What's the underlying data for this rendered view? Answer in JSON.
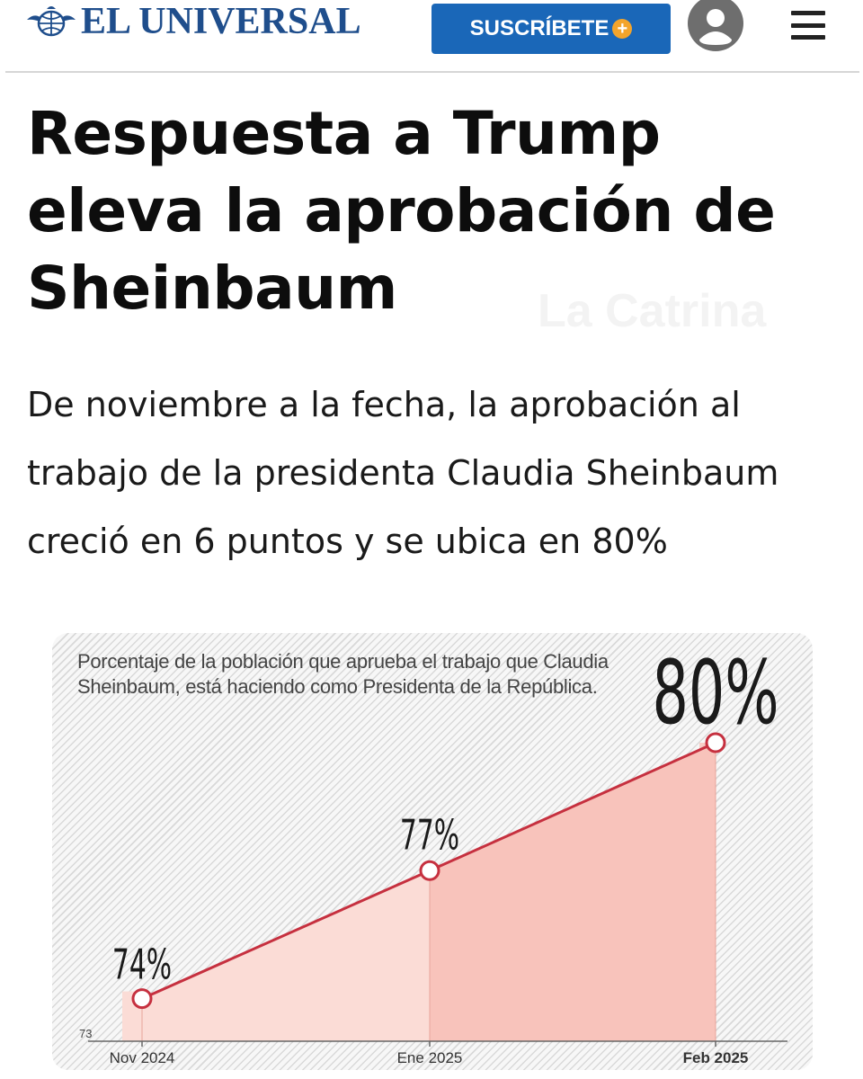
{
  "header": {
    "brand": "EL UNIVERSAL",
    "subscribe_label": "SUSCRÍBETE",
    "subscribe_badge": "+",
    "colors": {
      "brand": "#1f4e8c",
      "button": "#1a67b8",
      "badge": "#f3a42b"
    },
    "icons": [
      "globe-eagle-emblem-icon",
      "user-avatar-icon",
      "hamburger-menu-icon"
    ]
  },
  "article": {
    "headline": "Respuesta a Trump eleva la aprobación de Sheinbaum",
    "lede": "De noviembre a la fecha, la aprobación al trabajo de la presidenta Claudia Sheinbaum creció en 6 puntos y se ubica en 80%",
    "watermark": "La Catrina"
  },
  "chart_data": {
    "type": "area",
    "title": "Porcentaje de la población que aprueba el trabajo que Claudia Sheinbaum, está haciendo como Presidenta de la República.",
    "categories": [
      "Nov 2024",
      "Ene 2025",
      "Feb 2025"
    ],
    "values": [
      74,
      77,
      80
    ],
    "data_labels": [
      "74%",
      "77%",
      "80%"
    ],
    "y_baseline_label": "73",
    "ylim": [
      73,
      80
    ],
    "grid": false,
    "colors": {
      "line": "#c6303f",
      "fill_light": "#fbdcd6",
      "fill_dark": "#f8c3bb"
    }
  }
}
